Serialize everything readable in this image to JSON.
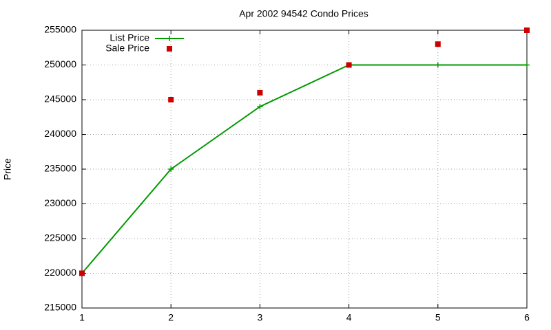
{
  "chart_data": {
    "type": "line",
    "title": "Apr 2002 94542 Condo Prices",
    "y_label": "Price",
    "x": [
      1,
      2,
      3,
      4,
      5,
      6
    ],
    "series": [
      {
        "name": "List Price",
        "color": "#009900",
        "style": "linespoints",
        "values": [
          220000,
          235000,
          244000,
          250000,
          250000,
          250000
        ]
      },
      {
        "name": "Sale Price",
        "color": "#cc0000",
        "style": "points",
        "values": [
          220000,
          245000,
          246000,
          250000,
          253000,
          255000
        ]
      }
    ],
    "xlim": [
      1,
      6
    ],
    "xticks": [
      1,
      2,
      3,
      4,
      5,
      6
    ],
    "ylim": [
      215000,
      255000
    ],
    "yticks": [
      215000,
      220000,
      225000,
      230000,
      235000,
      240000,
      245000,
      250000,
      255000
    ],
    "grid": true,
    "legend": "top-left"
  }
}
